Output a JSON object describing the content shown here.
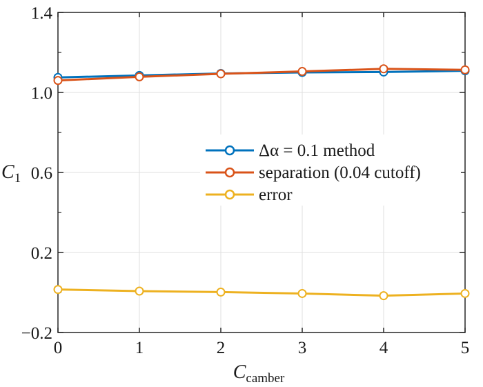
{
  "chart_data": {
    "type": "line",
    "title": "",
    "xlabel": {
      "main": "C",
      "sub": "camber"
    },
    "ylabel": {
      "main": "C",
      "sub": "1"
    },
    "xlim": [
      0,
      5
    ],
    "ylim": [
      -0.2,
      1.4
    ],
    "x_ticks": [
      0,
      1,
      2,
      3,
      4,
      5
    ],
    "x_tick_labels": [
      "0",
      "1",
      "2",
      "3",
      "4",
      "5"
    ],
    "y_ticks": [
      -0.2,
      0.2,
      0.6,
      1.0,
      1.4
    ],
    "y_tick_labels": [
      "−0.2",
      "0.2",
      "0.6",
      "1.0",
      "1.4"
    ],
    "grid": true,
    "legend_position": "right-middle",
    "x": [
      0,
      1,
      2,
      3,
      4,
      5
    ],
    "series": [
      {
        "name": "Δα = 0.1  method",
        "color": "#0072BD",
        "marker": "circle",
        "values": [
          1.075,
          1.085,
          1.095,
          1.1,
          1.102,
          1.108
        ]
      },
      {
        "name": "separation (0.04 cutoff)",
        "color": "#D95319",
        "marker": "circle",
        "values": [
          1.06,
          1.078,
          1.093,
          1.105,
          1.118,
          1.113
        ]
      },
      {
        "name": "error",
        "color": "#EDB120",
        "marker": "circle",
        "values": [
          0.015,
          0.007,
          0.002,
          -0.005,
          -0.016,
          -0.005
        ]
      }
    ]
  }
}
